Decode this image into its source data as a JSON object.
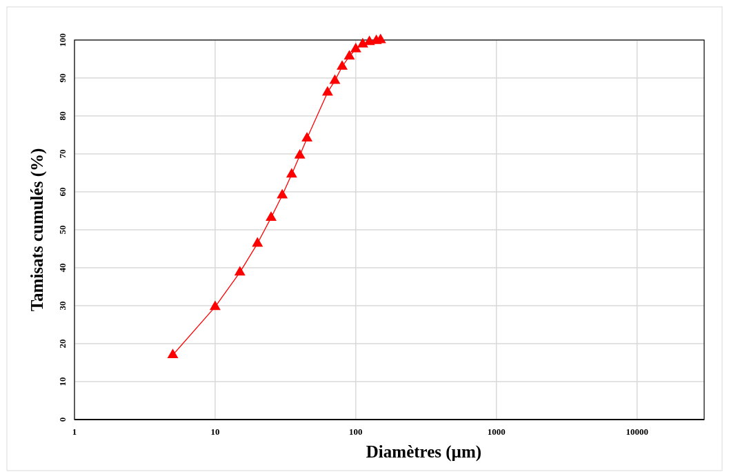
{
  "chart_data": {
    "type": "line",
    "xlabel": "Diamètres (µm)",
    "ylabel": "Tamisats cumulés (%)",
    "log": "x",
    "xlim": [
      1,
      30000
    ],
    "xticks": [
      1,
      10,
      100,
      1000,
      10000
    ],
    "ylim": [
      0,
      100
    ],
    "yticks": [
      0,
      10,
      20,
      30,
      40,
      50,
      60,
      70,
      80,
      90,
      100
    ],
    "grid": true,
    "marker": "triangle",
    "line_style": "solid",
    "series": [
      {
        "color": "#ff0000",
        "x": [
          5,
          10,
          15,
          20,
          25,
          30,
          35,
          40,
          45,
          63,
          71,
          80,
          90,
          100,
          112,
          125,
          140,
          150
        ],
        "values": [
          17,
          29.7,
          38.8,
          46.4,
          53.2,
          59.1,
          64.6,
          69.6,
          74.1,
          86.2,
          89.3,
          93.0,
          95.7,
          97.6,
          98.9,
          99.5,
          99.8,
          100
        ]
      }
    ]
  }
}
